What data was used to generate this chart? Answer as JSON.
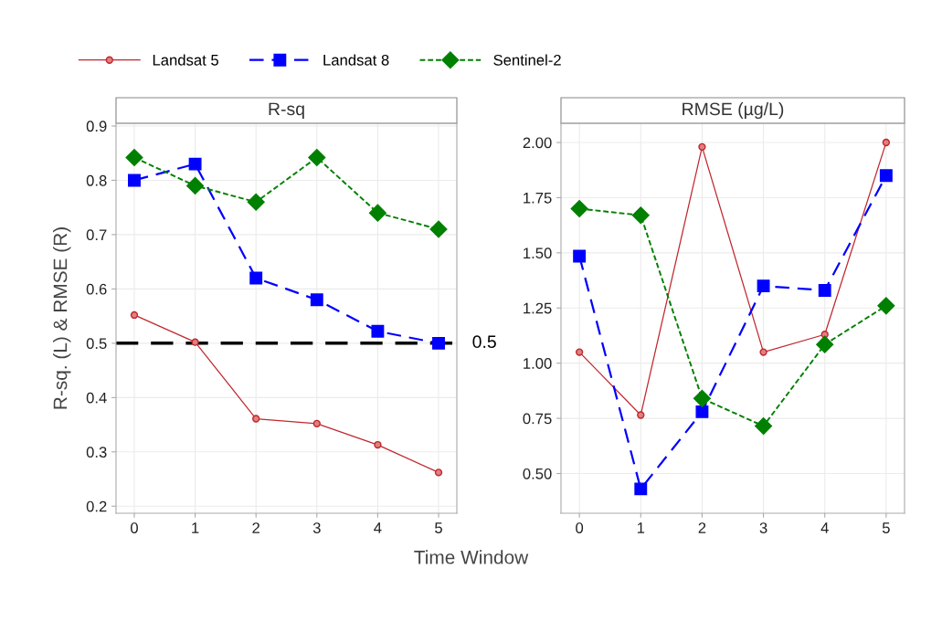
{
  "chart_data": [
    {
      "type": "line",
      "title": "R-sq",
      "xlabel": "Time Window",
      "ylabel": "R-sq. (L) & RMSE (R)",
      "x": [
        0,
        1,
        2,
        3,
        4,
        5
      ],
      "xlim": [
        -0.3,
        5.3
      ],
      "xticks": [
        0,
        1,
        2,
        3,
        4,
        5
      ],
      "ylim": [
        0.187,
        0.905
      ],
      "yticks": [
        0.2,
        0.3,
        0.4,
        0.5,
        0.6,
        0.7,
        0.8,
        0.9
      ],
      "grid": true,
      "legend": "top",
      "series": [
        {
          "name": "Landsat 5",
          "color": "#c0272d",
          "marker": "circle",
          "line_style": "solid",
          "values": [
            0.552,
            0.502,
            0.361,
            0.352,
            0.313,
            0.262
          ]
        },
        {
          "name": "Landsat 8",
          "color": "#0000ff",
          "marker": "square",
          "line_style": "dashed",
          "values": [
            0.8,
            0.83,
            0.62,
            0.58,
            0.522,
            0.5
          ]
        },
        {
          "name": "Sentinel-2",
          "color": "#008000",
          "marker": "diamond",
          "line_style": "dotted",
          "values": [
            0.842,
            0.79,
            0.76,
            0.842,
            0.74,
            0.71
          ]
        }
      ],
      "ref_lines": [
        {
          "axis": "y",
          "value": 0.5,
          "label": "0.5",
          "color": "#000000",
          "line_style": "dashed"
        }
      ]
    },
    {
      "type": "line",
      "title": "RMSE (µg/L)",
      "x": [
        0,
        1,
        2,
        3,
        4,
        5
      ],
      "xlim": [
        -0.3,
        5.3
      ],
      "xticks": [
        0,
        1,
        2,
        3,
        4,
        5
      ],
      "ylim": [
        0.32,
        2.087
      ],
      "yticks": [
        {
          "value": 0.5,
          "label": "0.50"
        },
        {
          "value": 0.75,
          "label": "0.75"
        },
        {
          "value": 1.0,
          "label": "1.00"
        },
        {
          "value": 1.25,
          "label": "1.25"
        },
        {
          "value": 1.5,
          "label": "1.50"
        },
        {
          "value": 1.75,
          "label": "1.75"
        },
        {
          "value": 2.0,
          "label": "2.00"
        }
      ],
      "grid": true,
      "series": [
        {
          "color": "#c0272d",
          "marker": "circle",
          "line_style": "solid",
          "values": [
            1.05,
            0.765,
            1.98,
            1.05,
            1.13,
            2.0
          ]
        },
        {
          "color": "#0000ff",
          "marker": "square",
          "line_style": "dashed",
          "values": [
            1.485,
            0.43,
            0.78,
            1.35,
            1.33,
            1.85
          ]
        },
        {
          "color": "#008000",
          "marker": "diamond",
          "line_style": "dotted",
          "values": [
            1.7,
            1.67,
            0.84,
            0.715,
            1.085,
            1.26
          ]
        }
      ]
    }
  ]
}
